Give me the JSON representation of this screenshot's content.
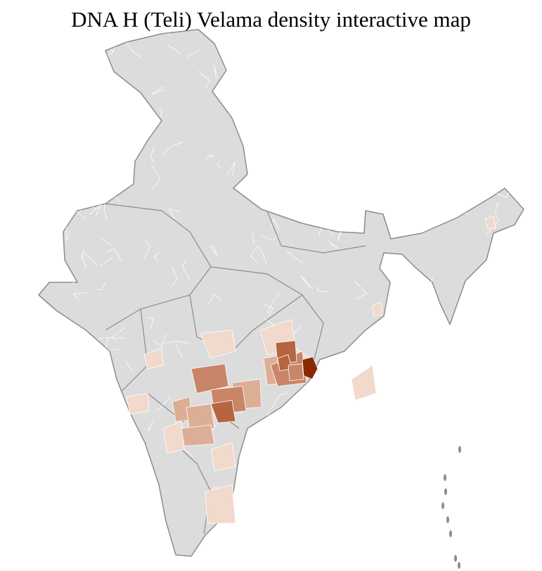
{
  "title": "DNA H (Teli) Velama density interactive map",
  "colors": {
    "background": "#ffffff",
    "no_data": "#dcdcdc",
    "district_border": "#ffffff",
    "state_border": "#8c8c8c",
    "levels": [
      "#f1d9cc",
      "#dcae96",
      "#c98567",
      "#b5653f",
      "#8a2a03"
    ]
  },
  "region_levels": [
    0,
    0,
    0,
    0,
    0,
    0,
    0,
    0,
    0,
    0,
    0,
    1,
    1,
    1,
    1,
    1,
    2,
    2,
    2,
    3,
    3,
    3,
    2,
    4
  ]
}
